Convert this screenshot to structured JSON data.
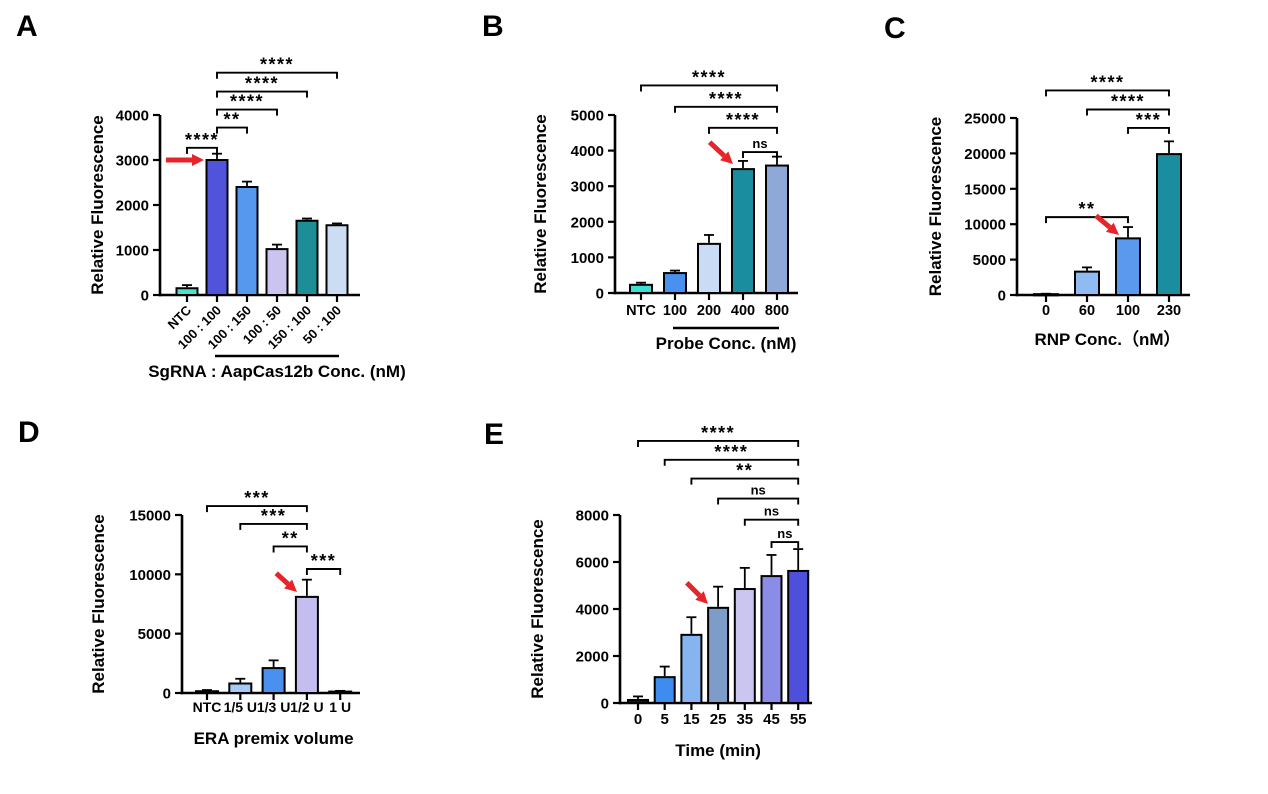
{
  "page": {
    "background": "#ffffff"
  },
  "accent_colors": {
    "arrow_red": "#e5252a",
    "axis_black": "#000000"
  },
  "chart_data": [
    {
      "panel": "A",
      "type": "bar",
      "title": "",
      "ylabel": "Relative  Fluorescence",
      "xlabel": "SgRNA : AapCas12b Conc. (nM)",
      "ylim": [
        0,
        4000
      ],
      "ytick_step": 1000,
      "ytick_labels": [
        "0",
        "1000",
        "2000",
        "3000",
        "4000"
      ],
      "categories": [
        "NTC",
        "100 : 100",
        "100 : 150",
        "100 : 50",
        "150 : 100",
        "50 : 100"
      ],
      "values": [
        150,
        3000,
        2400,
        1020,
        1650,
        1550
      ],
      "errors": [
        70,
        140,
        120,
        100,
        50,
        40
      ],
      "bar_colors": [
        "#4fe0cc",
        "#5154db",
        "#5598ee",
        "#cbc4ef",
        "#1d8e96",
        "#ccddf3"
      ],
      "significance": [
        {
          "from": 0,
          "to": 1,
          "label": "****",
          "y": 3270
        },
        {
          "from": 1,
          "to": 2,
          "label": "**",
          "y": 3720
        },
        {
          "from": 1,
          "to": 3,
          "label": "****",
          "y": 4120
        },
        {
          "from": 1,
          "to": 4,
          "label": "****",
          "y": 4520
        },
        {
          "from": 1,
          "to": 5,
          "label": "****",
          "y": 4940
        }
      ],
      "arrow": {
        "target_index": 1,
        "direction": "right"
      },
      "category_underline": {
        "from": 1,
        "to": 5
      },
      "xticklabel_rotation": 45,
      "grid": false,
      "legend": false
    },
    {
      "panel": "B",
      "type": "bar",
      "title": "",
      "ylabel": "Relative  Fluorescence",
      "xlabel": "Probe Conc. (nM)",
      "ylim": [
        0,
        5000
      ],
      "ytick_step": 1000,
      "ytick_labels": [
        "0",
        "1000",
        "2000",
        "3000",
        "4000",
        "5000"
      ],
      "categories": [
        "NTC",
        "100",
        "200",
        "400",
        "800"
      ],
      "values": [
        230,
        560,
        1380,
        3480,
        3580
      ],
      "errors": [
        60,
        70,
        250,
        230,
        250
      ],
      "bar_colors": [
        "#3edfd2",
        "#4a90ee",
        "#cadcf5",
        "#1a8e9e",
        "#8ea8d8"
      ],
      "significance": [
        {
          "from": 3,
          "to": 4,
          "label": "ns",
          "y": 3960
        },
        {
          "from": 2,
          "to": 4,
          "label": "****",
          "y": 4640
        },
        {
          "from": 1,
          "to": 4,
          "label": "****",
          "y": 5230
        },
        {
          "from": 0,
          "to": 4,
          "label": "****",
          "y": 5830
        }
      ],
      "arrow": {
        "target_index": 3,
        "direction": "down-right"
      },
      "category_underline": {
        "from": 1,
        "to": 4
      },
      "xticklabel_rotation": 0,
      "grid": false,
      "legend": false
    },
    {
      "panel": "C",
      "type": "bar",
      "title": "",
      "ylabel": "Relative  Fluorescence",
      "xlabel": "RNP Conc.（nM）",
      "ylim": [
        0,
        25000
      ],
      "ytick_step": 5000,
      "ytick_labels": [
        "0",
        "5000",
        "10000",
        "15000",
        "20000",
        "25000"
      ],
      "categories": [
        "0",
        "60",
        "100",
        "230"
      ],
      "values": [
        120,
        3300,
        8000,
        19900
      ],
      "errors": [
        60,
        600,
        1600,
        1800
      ],
      "bar_colors": [
        "#c8ccd2",
        "#90bbf2",
        "#5b99ee",
        "#1a8e9e"
      ],
      "significance": [
        {
          "from": 0,
          "to": 2,
          "label": "**",
          "y": 11000
        },
        {
          "from": 2,
          "to": 3,
          "label": "***",
          "y": 23600
        },
        {
          "from": 1,
          "to": 3,
          "label": "****",
          "y": 26200
        },
        {
          "from": 0,
          "to": 3,
          "label": "****",
          "y": 28900
        }
      ],
      "arrow": {
        "target_index": 2,
        "direction": "down-right"
      },
      "category_underline": null,
      "xticklabel_rotation": 0,
      "grid": false,
      "legend": false
    },
    {
      "panel": "D",
      "type": "bar",
      "title": "",
      "ylabel": "Relative  Fluorescence",
      "xlabel": "ERA premix volume",
      "ylim": [
        0,
        15000
      ],
      "ytick_step": 5000,
      "ytick_labels": [
        "0",
        "5000",
        "10000",
        "15000"
      ],
      "categories": [
        "NTC",
        "1/5 U",
        "1/3 U",
        "1/2 U",
        "1 U"
      ],
      "values": [
        150,
        800,
        2100,
        8100,
        120
      ],
      "errors": [
        100,
        400,
        650,
        1450,
        60
      ],
      "bar_colors": [
        "#d6d6d6",
        "#a6c9f5",
        "#4a90ee",
        "#c4bef0",
        "#30303c"
      ],
      "significance": [
        {
          "from": 3,
          "to": 4,
          "label": "***",
          "y": 10450
        },
        {
          "from": 2,
          "to": 3,
          "label": "**",
          "y": 12350
        },
        {
          "from": 1,
          "to": 3,
          "label": "***",
          "y": 14250
        },
        {
          "from": 0,
          "to": 3,
          "label": "***",
          "y": 15750
        }
      ],
      "arrow": {
        "target_index": 3,
        "direction": "down-right"
      },
      "category_underline": null,
      "xticklabel_rotation": 0,
      "grid": false,
      "legend": false
    },
    {
      "panel": "E",
      "type": "bar",
      "title": "",
      "ylabel": "Relative  Fluorescence",
      "xlabel": "Time (min)",
      "ylim": [
        0,
        8000
      ],
      "ytick_step": 2000,
      "ytick_labels": [
        "0",
        "2000",
        "4000",
        "6000",
        "8000"
      ],
      "categories": [
        "0",
        "5",
        "15",
        "25",
        "35",
        "45",
        "55"
      ],
      "values": [
        130,
        1100,
        2900,
        4050,
        4850,
        5400,
        5620
      ],
      "errors": [
        150,
        450,
        750,
        900,
        900,
        900,
        930
      ],
      "bar_colors": [
        "#14142e",
        "#3e8cf0",
        "#86b4f0",
        "#7e9cc8",
        "#cbc6f0",
        "#8b8be8",
        "#4e50dc"
      ],
      "significance": [
        {
          "from": 5,
          "to": 6,
          "label": "ns",
          "y": 6850
        },
        {
          "from": 4,
          "to": 6,
          "label": "ns",
          "y": 7800
        },
        {
          "from": 3,
          "to": 6,
          "label": "ns",
          "y": 8700
        },
        {
          "from": 2,
          "to": 6,
          "label": "**",
          "y": 9550
        },
        {
          "from": 1,
          "to": 6,
          "label": "****",
          "y": 10350
        },
        {
          "from": 0,
          "to": 6,
          "label": "****",
          "y": 11150
        }
      ],
      "arrow": {
        "target_index": 3,
        "direction": "down-right"
      },
      "category_underline": null,
      "xticklabel_rotation": 0,
      "grid": false,
      "legend": false
    }
  ]
}
